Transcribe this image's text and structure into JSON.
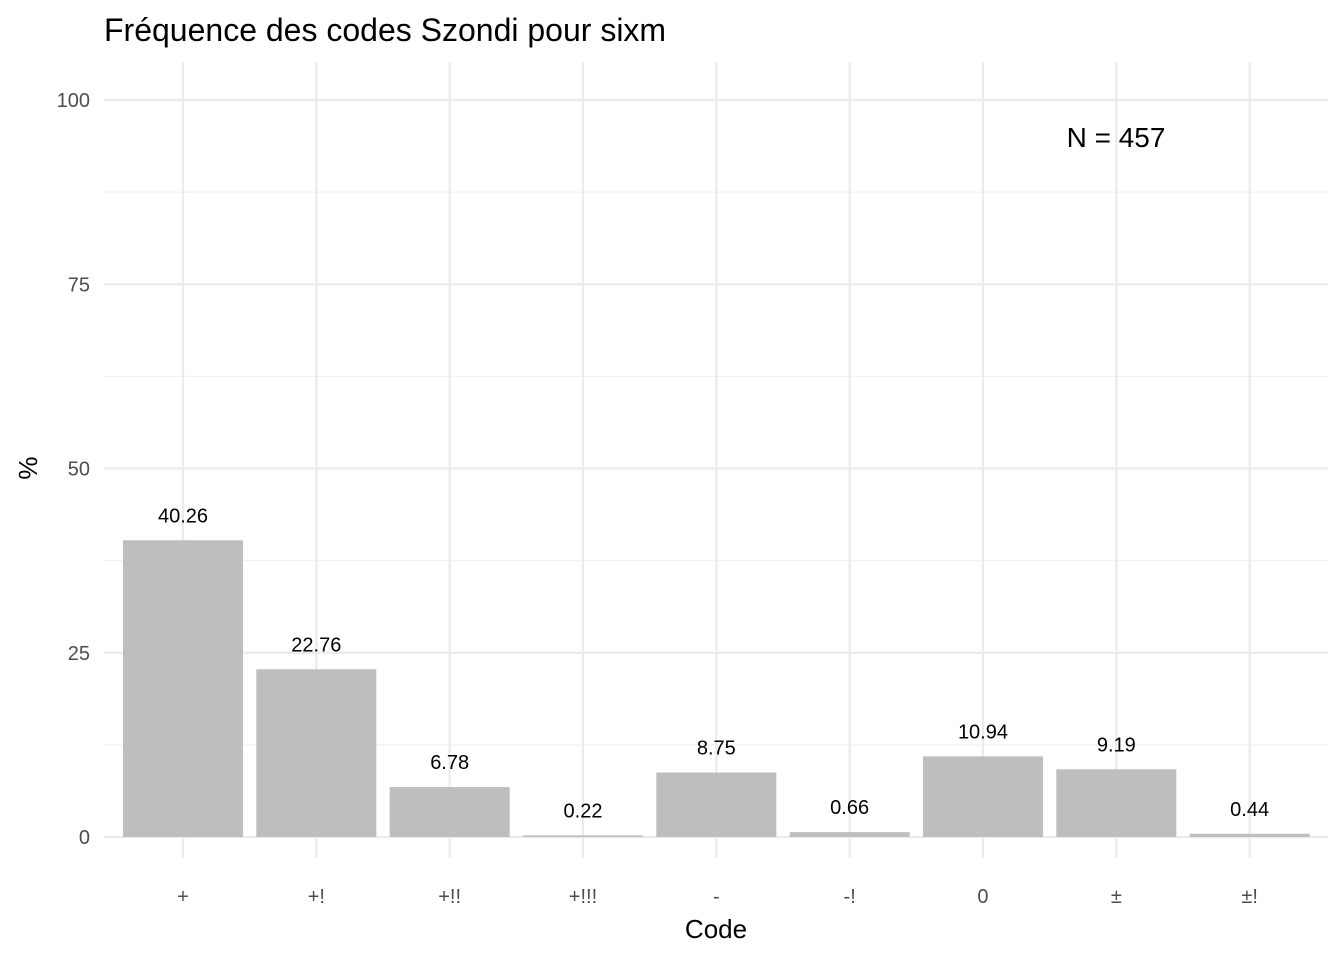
{
  "chart_data": {
    "type": "bar",
    "title": "Fréquence des codes Szondi pour sixm",
    "xlabel": "Code",
    "ylabel": "%",
    "categories": [
      "+",
      "+!",
      "+!!",
      "+!!!",
      "-",
      "-!",
      "0",
      "±",
      "±!"
    ],
    "values": [
      40.26,
      22.76,
      6.78,
      0.22,
      8.75,
      0.66,
      10.94,
      9.19,
      0.44
    ],
    "data_labels": [
      "40.26",
      "22.76",
      "6.78",
      "0.22",
      "8.75",
      "0.66",
      "10.94",
      "9.19",
      "0.44"
    ],
    "yticks": [
      0,
      25,
      50,
      75,
      100
    ],
    "ylim": [
      0,
      100
    ],
    "annotation": "N = 457",
    "bar_color": "#bebebe",
    "grid": true,
    "legend": "none"
  }
}
